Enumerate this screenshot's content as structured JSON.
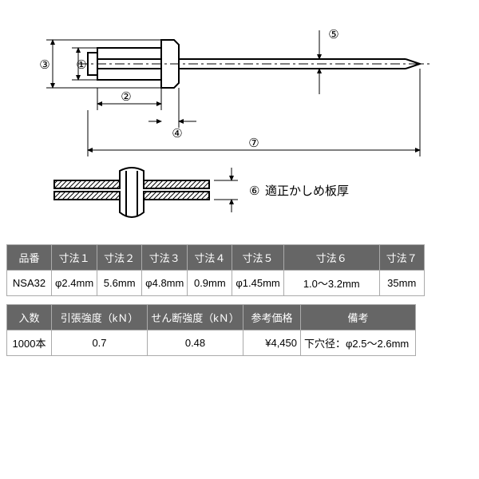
{
  "annotation_label": "適正かしめ板厚",
  "table1": {
    "headers": [
      "品番",
      "寸法１",
      "寸法２",
      "寸法３",
      "寸法４",
      "寸法５",
      "寸法６",
      "寸法７"
    ],
    "row": [
      "NSA32",
      "φ2.4mm",
      "5.6mm",
      "φ4.8mm",
      "0.9mm",
      "φ1.45mm",
      "1.0～3.2mm",
      "35mm"
    ],
    "widths": [
      56,
      56,
      56,
      56,
      56,
      60,
      120,
      56
    ]
  },
  "table2": {
    "headers": [
      "入数",
      "引張強度（kＮ）",
      "せん断強度（kＮ）",
      "参考価格",
      "備考"
    ],
    "row": [
      "1000本",
      "0.7",
      "0.48",
      "¥4,450",
      "下穴径：φ2.5～2.6mm"
    ],
    "widths": [
      56,
      120,
      120,
      72,
      144
    ]
  },
  "diagram": {
    "stroke": "#000",
    "stroke_width": 2,
    "thin_width": 1,
    "hatch_spacing": 6
  }
}
